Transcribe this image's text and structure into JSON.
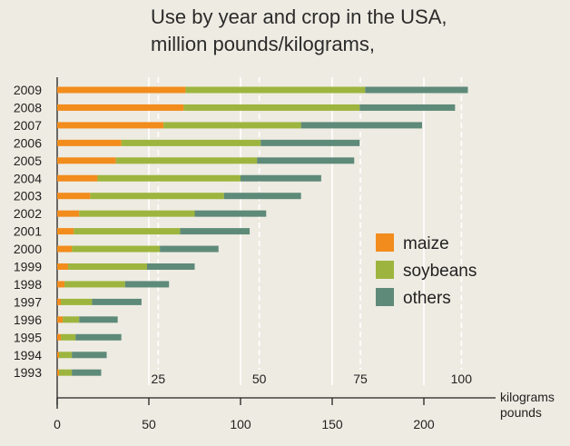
{
  "chart_data": {
    "type": "bar",
    "orientation": "horizontal",
    "stacked": true,
    "title_lines": [
      "Use by year and crop in the USA,",
      "million pounds/kilograms,"
    ],
    "categories": [
      "2009",
      "2008",
      "2007",
      "2006",
      "2005",
      "2004",
      "2003",
      "2002",
      "2001",
      "2000",
      "1999",
      "1998",
      "1997",
      "1996",
      "1995",
      "1994",
      "1993"
    ],
    "series": [
      {
        "name": "maize",
        "color": "#f28c1c",
        "values": [
          70,
          69,
          58,
          35,
          32,
          22,
          18,
          12,
          9,
          8,
          6,
          4,
          2,
          3,
          2,
          1,
          1
        ]
      },
      {
        "name": "soybeans",
        "color": "#9db53e",
        "values": [
          98,
          96,
          75,
          76,
          77,
          78,
          73,
          63,
          58,
          48,
          43,
          33,
          17,
          9,
          8,
          7,
          7
        ]
      },
      {
        "name": "others",
        "color": "#5e8a79",
        "values": [
          56,
          52,
          66,
          54,
          53,
          44,
          42,
          39,
          38,
          32,
          26,
          24,
          27,
          21,
          25,
          19,
          16
        ]
      }
    ],
    "axes": {
      "pounds": {
        "label": "pounds",
        "ticks": [
          0,
          50,
          100,
          150,
          200
        ],
        "range": [
          0,
          225
        ]
      },
      "kilograms": {
        "label": "kilograms",
        "ticks": [
          25,
          50,
          75,
          100
        ],
        "tick_labels": [
          "25",
          "50",
          "75",
          "100"
        ]
      }
    },
    "grid": "dashed vertical lines at kilogram ticks, solid at pound ticks",
    "legend_position": "right-middle"
  }
}
